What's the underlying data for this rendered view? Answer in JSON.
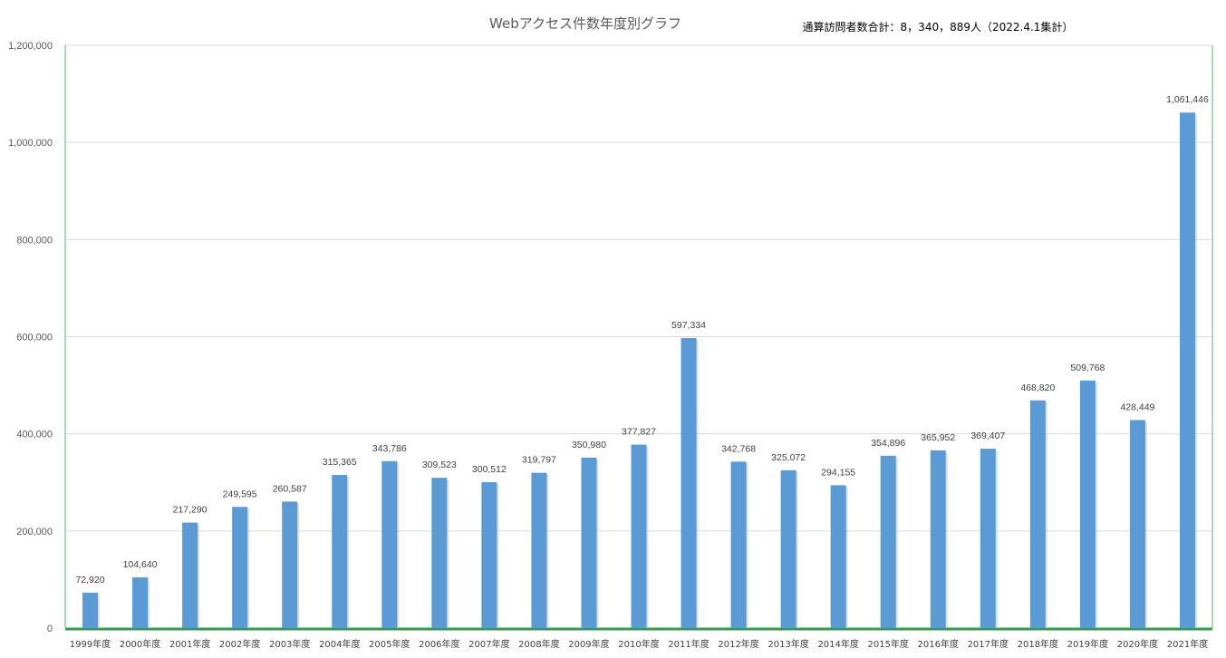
{
  "chart_data": {
    "type": "bar",
    "title": "Webアクセス件数年度別グラフ",
    "annotation": "通算訪問者数合計：8，340，889人（2022.4.1集計）",
    "categories": [
      "1999年度",
      "2000年度",
      "2001年度",
      "2002年度",
      "2003年度",
      "2004年度",
      "2005年度",
      "2006年度",
      "2007年度",
      "2008年度",
      "2009年度",
      "2010年度",
      "2011年度",
      "2012年度",
      "2013年度",
      "2014年度",
      "2015年度",
      "2016年度",
      "2017年度",
      "2018年度",
      "2019年度",
      "2020年度",
      "2021年度"
    ],
    "values": [
      72920,
      104640,
      217290,
      249595,
      260587,
      315365,
      343786,
      309523,
      300512,
      319797,
      350980,
      377827,
      597334,
      342768,
      325072,
      294155,
      354896,
      365952,
      369407,
      468820,
      509768,
      428449,
      1061446
    ],
    "data_labels": [
      "72,920",
      "104,640",
      "217,290",
      "249,595",
      "260,587",
      "315,365",
      "343,786",
      "309,523",
      "300,512",
      "319,797",
      "350,980",
      "377,827",
      "597,334",
      "342,768",
      "325,072",
      "294,155",
      "354,896",
      "365,952",
      "369,407",
      "468,820",
      "509,768",
      "428,449",
      "1,061,446"
    ],
    "yticks": [
      0,
      200000,
      400000,
      600000,
      800000,
      1000000,
      1200000
    ],
    "ytick_labels": [
      "0",
      "200,000",
      "400,000",
      "600,000",
      "800,000",
      "1,000,000",
      "1,200,000"
    ],
    "ylim": [
      0,
      1200000
    ],
    "xlabel": "",
    "ylabel": "",
    "grid": true,
    "legend": "none",
    "colors": {
      "bar": "#5b9bd5",
      "grid": "#d9d9d9",
      "baseline": "#2e9e48",
      "plot_border": "#a8dcb8"
    }
  }
}
